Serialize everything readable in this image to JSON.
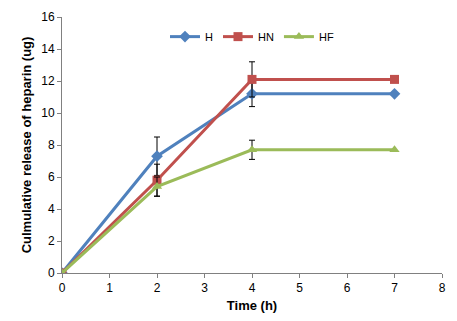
{
  "chart_data": {
    "type": "line",
    "x_label": "Time (h)",
    "y_label": "Culmulative release of heparin (ug)",
    "x": [
      0,
      2,
      4,
      7
    ],
    "series": [
      {
        "name": "H",
        "color": "#4f81bd",
        "marker": "diamond",
        "values": [
          0,
          7.3,
          11.2,
          11.2
        ],
        "errors": [
          null,
          1.2,
          0.8,
          null
        ]
      },
      {
        "name": "HN",
        "color": "#c0504d",
        "marker": "square",
        "values": [
          0,
          5.8,
          12.1,
          12.1
        ],
        "errors": [
          null,
          1.0,
          1.1,
          null
        ]
      },
      {
        "name": "HF",
        "color": "#9bbb59",
        "marker": "triangle-up",
        "values": [
          0,
          5.4,
          7.7,
          7.7
        ],
        "errors": [
          null,
          0.6,
          0.6,
          null
        ]
      }
    ],
    "xlim": [
      0,
      8
    ],
    "xticks": [
      0,
      1,
      2,
      3,
      4,
      5,
      6,
      7,
      8
    ],
    "ylim": [
      0,
      16
    ],
    "yticks": [
      0,
      2,
      4,
      6,
      8,
      10,
      12,
      14,
      16
    ],
    "grid": false,
    "legend": "top"
  }
}
